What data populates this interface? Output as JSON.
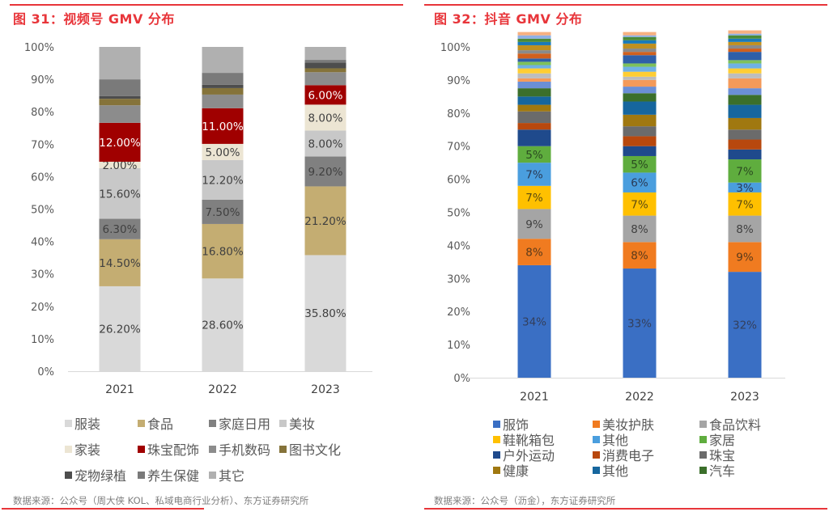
{
  "chart_data": [
    {
      "type": "bar",
      "stacked": true,
      "title": "图 31：视频号 GMV 分布",
      "categories": [
        "2021",
        "2022",
        "2023"
      ],
      "ylim": [
        0,
        100
      ],
      "yticks": [
        "0%",
        "10%",
        "20%",
        "30%",
        "40%",
        "50%",
        "60%",
        "70%",
        "80%",
        "90%",
        "100%"
      ],
      "xlabel": "",
      "ylabel": "",
      "grid": false,
      "legend_position": "bottom",
      "series": [
        {
          "name": "服装",
          "color": "#d9d9d9",
          "label_color": "#404040",
          "values": [
            26.2,
            28.6,
            35.8
          ],
          "labels": [
            "26.20%",
            "28.60%",
            "35.80%"
          ]
        },
        {
          "name": "食品",
          "color": "#c4ad72",
          "label_color": "#404040",
          "values": [
            14.5,
            16.8,
            21.2
          ],
          "labels": [
            "14.50%",
            "16.80%",
            "21.20%"
          ]
        },
        {
          "name": "家庭日用",
          "color": "#808080",
          "label_color": "#404040",
          "values": [
            6.3,
            7.5,
            9.2
          ],
          "labels": [
            "6.30%",
            "7.50%",
            "9.20%"
          ]
        },
        {
          "name": "美妆",
          "color": "#c8c8c8",
          "label_color": "#404040",
          "values": [
            15.6,
            12.2,
            8.0
          ],
          "labels": [
            "15.60%",
            "12.20%",
            "8.00%"
          ]
        },
        {
          "name": "家装",
          "color": "#ece5d3",
          "label_color": "#404040",
          "values": [
            2.0,
            5.0,
            8.0
          ],
          "labels": [
            "2.00%",
            "5.00%",
            "8.00%"
          ]
        },
        {
          "name": "珠宝配饰",
          "color": "#a00000",
          "label_color": "#ffffff",
          "values": [
            12.0,
            11.0,
            6.0
          ],
          "labels": [
            "12.00%",
            "11.00%",
            "6.00%"
          ]
        },
        {
          "name": "手机数码",
          "color": "#8c8c8c",
          "label_color": "",
          "values": [
            5.4,
            4.2,
            4.0
          ],
          "labels": [
            "",
            "",
            ""
          ]
        },
        {
          "name": "图书文化",
          "color": "#85733a",
          "label_color": "",
          "values": [
            2.0,
            2.0,
            1.2
          ],
          "labels": [
            "",
            "",
            ""
          ]
        },
        {
          "name": "宠物绿植",
          "color": "#4d4d4d",
          "label_color": "",
          "values": [
            0.8,
            1.0,
            1.8
          ],
          "labels": [
            "",
            "",
            ""
          ]
        },
        {
          "name": "养生保健",
          "color": "#7a7a7a",
          "label_color": "",
          "values": [
            5.2,
            3.7,
            0.8
          ],
          "labels": [
            "",
            "",
            ""
          ]
        },
        {
          "name": "其它",
          "color": "#b0b0b0",
          "label_color": "",
          "values": [
            10.0,
            8.0,
            4.0
          ],
          "labels": [
            "",
            "",
            ""
          ]
        }
      ],
      "source": "数据来源：公众号（周大侠 KOL、私域电商行业分析）、东方证券研究所"
    },
    {
      "type": "bar",
      "stacked": true,
      "title": "图 32：抖音 GMV 分布",
      "categories": [
        "2021",
        "2022",
        "2023"
      ],
      "ylim": [
        0,
        100
      ],
      "yticks": [
        "0%",
        "10%",
        "20%",
        "30%",
        "40%",
        "50%",
        "60%",
        "70%",
        "80%",
        "90%",
        "100%"
      ],
      "xlabel": "",
      "ylabel": "",
      "grid": false,
      "legend_position": "bottom",
      "series": [
        {
          "name": "服饰",
          "color": "#3a6fc4",
          "label_color": "#333f5c",
          "values": [
            34,
            33,
            32
          ],
          "labels": [
            "34%",
            "33%",
            "32%"
          ]
        },
        {
          "name": "美妆护肤",
          "color": "#f07b20",
          "label_color": "#5a3a1a",
          "values": [
            8,
            8,
            9
          ],
          "labels": [
            "8%",
            "8%",
            "9%"
          ]
        },
        {
          "name": "食品饮料",
          "color": "#a5a5a5",
          "label_color": "#404040",
          "values": [
            9,
            8,
            8
          ],
          "labels": [
            "9%",
            "8%",
            "8%"
          ]
        },
        {
          "name": "鞋靴箱包",
          "color": "#ffc000",
          "label_color": "#5a4a10",
          "values": [
            7,
            7,
            7
          ],
          "labels": [
            "7%",
            "7%",
            "7%"
          ]
        },
        {
          "name": "其他",
          "color": "#4a9ede",
          "label_color": "#2a3a55",
          "values": [
            7,
            6,
            3
          ],
          "labels": [
            "7%",
            "6%",
            "3%"
          ]
        },
        {
          "name": "家居",
          "color": "#5fad3e",
          "label_color": "#2a4a20",
          "values": [
            5,
            5,
            7
          ],
          "labels": [
            "5%",
            "5%",
            "7%"
          ]
        },
        {
          "name": "户外运动",
          "color": "#1f4a8c",
          "label_color": "",
          "values": [
            5,
            3,
            3
          ],
          "labels": [
            "",
            "",
            ""
          ]
        },
        {
          "name": "消费电子",
          "color": "#b8480e",
          "label_color": "",
          "values": [
            2,
            3,
            3
          ],
          "labels": [
            "",
            "",
            ""
          ]
        },
        {
          "name": "珠宝",
          "color": "#6b6b6b",
          "label_color": "",
          "values": [
            3.5,
            3,
            3
          ],
          "labels": [
            "",
            "",
            ""
          ]
        },
        {
          "name": "健康",
          "color": "#a07810",
          "label_color": "",
          "values": [
            2,
            3.5,
            3.5
          ],
          "labels": [
            "",
            "",
            ""
          ]
        },
        {
          "name": "其他",
          "color": "#16669e",
          "label_color": "",
          "values": [
            2.5,
            4,
            4
          ],
          "labels": [
            "",
            "",
            ""
          ]
        },
        {
          "name": "汽车",
          "color": "#3b6f2b",
          "label_color": "",
          "values": [
            2.5,
            2.5,
            3
          ],
          "labels": [
            "",
            "",
            ""
          ]
        },
        {
          "name": "",
          "color": "#6b8fd6",
          "label_color": "",
          "values": [
            2,
            2,
            2
          ],
          "labels": [
            "",
            "",
            ""
          ]
        },
        {
          "name": "",
          "color": "#f49a5a",
          "label_color": "",
          "values": [
            1,
            2,
            3
          ],
          "labels": [
            "",
            "",
            ""
          ]
        },
        {
          "name": "",
          "color": "#bdbdbd",
          "label_color": "",
          "values": [
            1.5,
            1,
            1.5
          ],
          "labels": [
            "",
            "",
            ""
          ]
        },
        {
          "name": "",
          "color": "#ffcd33",
          "label_color": "",
          "values": [
            1.5,
            1.5,
            1.5
          ],
          "labels": [
            "",
            "",
            ""
          ]
        },
        {
          "name": "",
          "color": "#6fb1e4",
          "label_color": "",
          "values": [
            1,
            1.5,
            1.5
          ],
          "labels": [
            "",
            "",
            ""
          ]
        },
        {
          "name": "",
          "color": "#7fc15a",
          "label_color": "",
          "values": [
            1,
            1,
            1
          ],
          "labels": [
            "",
            "",
            ""
          ]
        },
        {
          "name": "",
          "color": "#2f5fa8",
          "label_color": "",
          "values": [
            1,
            2.5,
            2.5
          ],
          "labels": [
            "",
            "",
            ""
          ]
        },
        {
          "name": "",
          "color": "#d0601e",
          "label_color": "",
          "values": [
            1.5,
            1,
            1
          ],
          "labels": [
            "",
            "",
            ""
          ]
        },
        {
          "name": "",
          "color": "#8a8a8a",
          "label_color": "",
          "values": [
            1,
            1,
            1
          ],
          "labels": [
            "",
            "",
            ""
          ]
        },
        {
          "name": "",
          "color": "#c09020",
          "label_color": "",
          "values": [
            1.5,
            1.5,
            1
          ],
          "labels": [
            "",
            "",
            ""
          ]
        },
        {
          "name": "",
          "color": "#1a7ab8",
          "label_color": "",
          "values": [
            1,
            1,
            1
          ],
          "labels": [
            "",
            "",
            ""
          ]
        },
        {
          "name": "",
          "color": "#4a8a38",
          "label_color": "",
          "values": [
            1,
            1,
            1
          ],
          "labels": [
            "",
            "",
            ""
          ]
        },
        {
          "name": "",
          "color": "#8fb0e6",
          "label_color": "",
          "values": [
            1,
            0.5,
            0.5
          ],
          "labels": [
            "",
            "",
            ""
          ]
        },
        {
          "name": "",
          "color": "#f7b080",
          "label_color": "",
          "values": [
            1,
            1,
            1
          ],
          "labels": [
            "",
            "",
            ""
          ]
        }
      ],
      "source": "数据来源：公众号（沥金），东方证券研究所"
    }
  ],
  "legends": {
    "left": [
      "服装",
      "食品",
      "家庭日用",
      "美妆",
      "家装",
      "珠宝配饰",
      "手机数码",
      "图书文化",
      "宠物绿植",
      "养生保健",
      "其它"
    ],
    "right": [
      "服饰",
      "美妆护肤",
      "食品饮料",
      "鞋靴箱包",
      "其他",
      "家居",
      "户外运动",
      "消费电子",
      "珠宝",
      "健康",
      "其他",
      "汽车"
    ]
  },
  "colors": {
    "accent_red": "#e8353a"
  }
}
